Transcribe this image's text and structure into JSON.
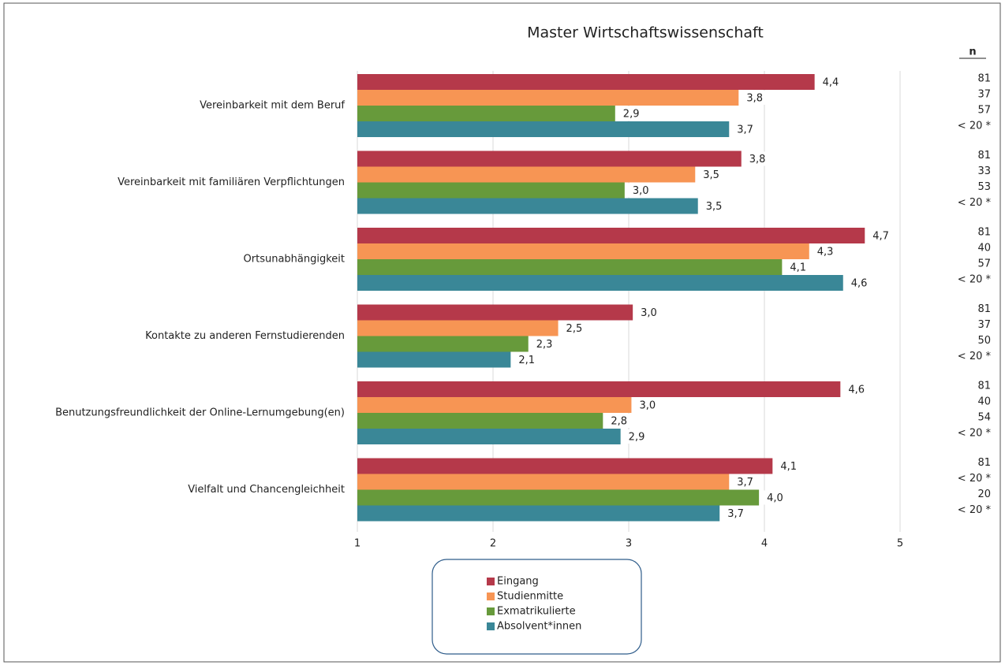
{
  "chart_data": {
    "type": "bar",
    "orientation": "horizontal",
    "title": "Master Wirtschaftswissenschaft",
    "categories": [
      "Vereinbarkeit mit dem Beruf",
      "Vereinbarkeit mit familiären Verpflichtungen",
      "Ortsunabhängigkeit",
      "Kontakte zu anderen Fernstudierenden",
      "Benutzungsfreundlichkeit der Online-Lernumgebung(en)",
      "Vielfalt und Chancengleichheit"
    ],
    "series": [
      {
        "name": "Eingang",
        "color": "#b5394a",
        "values": [
          4.37,
          3.83,
          4.74,
          3.03,
          4.56,
          4.06
        ],
        "value_labels": [
          "4,4",
          "3,8",
          "4,7",
          "3,0",
          "4,6",
          "4,1"
        ],
        "n": [
          "81",
          "81",
          "81",
          "81",
          "81",
          "81"
        ]
      },
      {
        "name": "Studienmitte",
        "color": "#f79554",
        "values": [
          3.81,
          3.49,
          4.33,
          2.48,
          3.02,
          3.74
        ],
        "value_labels": [
          "3,8",
          "3,5",
          "4,3",
          "2,5",
          "3,0",
          "3,7"
        ],
        "n": [
          "37",
          "33",
          "40",
          "37",
          "40",
          "< 20 *"
        ]
      },
      {
        "name": "Exmatrikulierte",
        "color": "#679a3b",
        "values": [
          2.9,
          2.97,
          4.13,
          2.26,
          2.81,
          3.96
        ],
        "value_labels": [
          "2,9",
          "3,0",
          "4,1",
          "2,3",
          "2,8",
          "4,0"
        ],
        "n": [
          "57",
          "53",
          "57",
          "50",
          "54",
          "20"
        ]
      },
      {
        "name": "Absolvent*innen",
        "color": "#3a8797",
        "values": [
          3.74,
          3.51,
          4.58,
          2.13,
          2.94,
          3.67
        ],
        "value_labels": [
          "3,7",
          "3,5",
          "4,6",
          "2,1",
          "2,9",
          "3,7"
        ],
        "n": [
          "< 20 *",
          "< 20 *",
          "< 20 *",
          "< 20 *",
          "< 20 *",
          "< 20 *"
        ]
      }
    ],
    "n_label": "n",
    "xlim": [
      1,
      5
    ],
    "xticks": [
      1,
      2,
      3,
      4,
      5
    ],
    "grid": true
  }
}
